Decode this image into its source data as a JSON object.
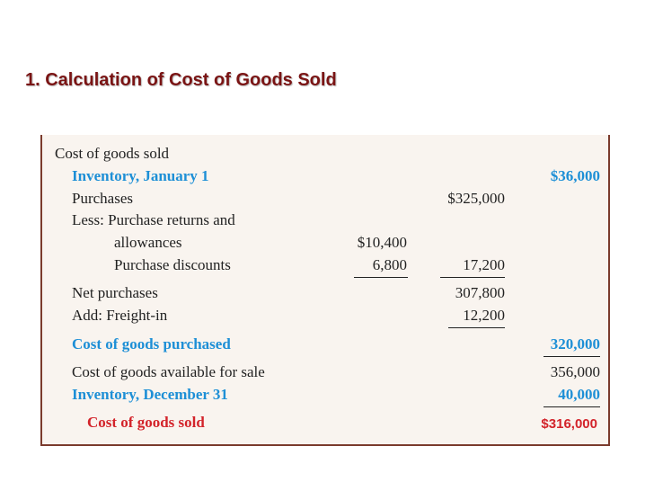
{
  "title": "1. Calculation of Cost of Goods Sold",
  "statement": {
    "header": "Cost of goods sold",
    "inventory_jan_label": "Inventory, January 1",
    "inventory_jan_value": "$36,000",
    "purchases_label": "Purchases",
    "purchases_value": "$325,000",
    "less_label": "Less: Purchase returns and",
    "allowances_label": "allowances",
    "allowances_value": "$10,400",
    "discounts_label": "Purchase discounts",
    "discounts_value": "6,800",
    "deductions_total": "17,200",
    "net_purchases_label": "Net purchases",
    "net_purchases_value": "307,800",
    "freight_label": "Add: Freight-in",
    "freight_value": "12,200",
    "cogp_label": "Cost of goods purchased",
    "cogp_value": "320,000",
    "available_label": "Cost of goods available for sale",
    "available_value": "356,000",
    "inventory_dec_label": "Inventory, December 31",
    "inventory_dec_value": "40,000",
    "cogs_label": "Cost of goods sold",
    "cogs_value": "$316,000"
  },
  "colors": {
    "title": "#7a1414",
    "highlight_blue": "#1d8fd6",
    "highlight_red": "#d3232a",
    "panel_bg": "#f9f4ef",
    "panel_border": "#7b3b2d"
  }
}
